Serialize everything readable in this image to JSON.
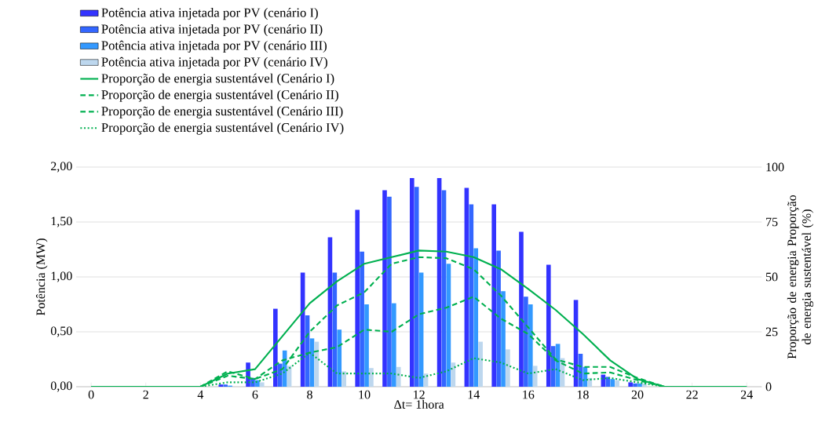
{
  "chart_data": {
    "type": "bar",
    "xlabel": "Δt= 1hora",
    "ylabel": "Potência (MW)",
    "y2label": "Proporção de energia Proporção de energia sustentável (%)",
    "xlim": [
      -0.55,
      24.55
    ],
    "xticks": [
      0,
      2,
      4,
      6,
      8,
      10,
      12,
      14,
      16,
      18,
      20,
      22,
      24
    ],
    "ylim": [
      0,
      2
    ],
    "yticks": [
      {
        "value": 0,
        "label": "0,00"
      },
      {
        "value": 0.5,
        "label": "0,50"
      },
      {
        "value": 1,
        "label": "1,00"
      },
      {
        "value": 1.5,
        "label": "1,50"
      },
      {
        "value": 2,
        "label": "2,00"
      }
    ],
    "y2lim": [
      0,
      100
    ],
    "y2ticks": [
      0,
      25,
      50,
      75,
      100
    ],
    "grid": "y",
    "legend": "top left",
    "series": [
      {
        "name": "Potência ativa injetada por PV (cenário I)",
        "color": "#3333ff",
        "x": [
          5,
          6,
          7,
          8,
          9,
          10,
          11,
          12,
          13,
          14,
          15,
          16,
          17,
          18,
          19,
          20
        ],
        "values": [
          0.02,
          0.22,
          0.71,
          1.04,
          1.36,
          1.61,
          1.79,
          1.9,
          1.9,
          1.81,
          1.66,
          1.41,
          1.11,
          0.79,
          0.11,
          0.04
        ]
      },
      {
        "name": "Potência ativa injetada por PV (cenário II)",
        "color": "#3366ff",
        "x": [
          5,
          6,
          7,
          8,
          9,
          10,
          11,
          12,
          13,
          14,
          15,
          16,
          17,
          18,
          19,
          20
        ],
        "values": [
          0.02,
          0.08,
          0.21,
          0.65,
          1.04,
          1.23,
          1.73,
          1.82,
          1.79,
          1.66,
          1.24,
          0.82,
          0.37,
          0.3,
          0.09,
          0.03
        ]
      },
      {
        "name": "Potência ativa injetada por PV (cenário III)",
        "color": "#3399ff",
        "x": [
          5,
          6,
          7,
          8,
          9,
          10,
          11,
          12,
          13,
          14,
          15,
          16,
          17,
          18,
          19,
          20
        ],
        "values": [
          0.01,
          0.06,
          0.33,
          0.44,
          0.52,
          0.75,
          0.76,
          1.04,
          1.12,
          1.26,
          0.87,
          0.75,
          0.39,
          0.18,
          0.07,
          0.03
        ]
      },
      {
        "name": "Potência ativa injetada por PV (cenário IV)",
        "color": "#bdd7ee",
        "x": [
          6,
          7,
          8,
          9,
          10,
          11,
          12,
          13,
          14,
          15,
          16,
          17,
          18,
          19,
          20
        ],
        "values": [
          0.04,
          0.19,
          0.41,
          0.14,
          0.17,
          0.18,
          0.12,
          0.22,
          0.41,
          0.34,
          0.19,
          0.26,
          0.08,
          0.06,
          0.03
        ]
      },
      {
        "name": "Proporção de energia sustentável (Cenário I)",
        "type": "line",
        "axis": "y2",
        "line_style": "solid",
        "color": "#00b050",
        "x": [
          0,
          1,
          2,
          3,
          4,
          5,
          6,
          7,
          8,
          9,
          10,
          11,
          12,
          13,
          14,
          15,
          16,
          17,
          18,
          19,
          20,
          21,
          22,
          23,
          24
        ],
        "values": [
          0,
          0,
          0,
          0,
          0,
          6,
          8,
          23,
          38,
          48,
          56,
          59,
          62,
          61.5,
          59,
          53.5,
          44.5,
          35,
          24,
          12,
          3.5,
          0,
          0,
          0,
          0
        ]
      },
      {
        "name": "Proporção de energia sustentável (Cenário II)",
        "type": "line",
        "axis": "y2",
        "line_style": "dashed",
        "color": "#00b050",
        "x": [
          0,
          1,
          2,
          3,
          4,
          5,
          6,
          7,
          8,
          9,
          10,
          11,
          12,
          13,
          14,
          15,
          16,
          17,
          18,
          19,
          20,
          21,
          22,
          23,
          24
        ],
        "values": [
          0,
          0,
          0,
          0,
          0,
          5,
          3.5,
          8,
          25,
          37,
          43,
          56,
          59,
          58.5,
          53.5,
          41.5,
          27,
          12.5,
          9,
          9,
          4,
          0,
          0,
          0,
          0
        ]
      },
      {
        "name": "Proporção de energia sustentável (Cenário III)",
        "type": "line",
        "axis": "y2",
        "line_style": "dashed",
        "color": "#00b050",
        "x": [
          0,
          1,
          2,
          3,
          4,
          5,
          6,
          7,
          8,
          9,
          10,
          11,
          12,
          13,
          14,
          15,
          16,
          17,
          18,
          19,
          20,
          21,
          22,
          23,
          24
        ],
        "values": [
          0,
          0,
          0,
          0,
          0,
          7,
          3.5,
          12,
          15.5,
          18,
          26,
          25,
          33,
          36,
          41,
          31,
          24,
          12,
          6,
          6.5,
          3,
          0,
          0,
          0,
          0
        ]
      },
      {
        "name": "Proporção de energia sustentável (Cenário IV)",
        "type": "line",
        "axis": "y2",
        "line_style": "dotted",
        "color": "#00b050",
        "x": [
          0,
          1,
          2,
          3,
          4,
          5,
          6,
          7,
          8,
          9,
          10,
          11,
          12,
          13,
          14,
          15,
          16,
          17,
          18,
          19,
          20,
          21,
          22,
          23,
          24
        ],
        "values": [
          0,
          0,
          0,
          0,
          0,
          2,
          2,
          6,
          15.5,
          6,
          6,
          6,
          4,
          7,
          13,
          11,
          6,
          8,
          3,
          4,
          2,
          0,
          0,
          0,
          0
        ]
      }
    ]
  }
}
